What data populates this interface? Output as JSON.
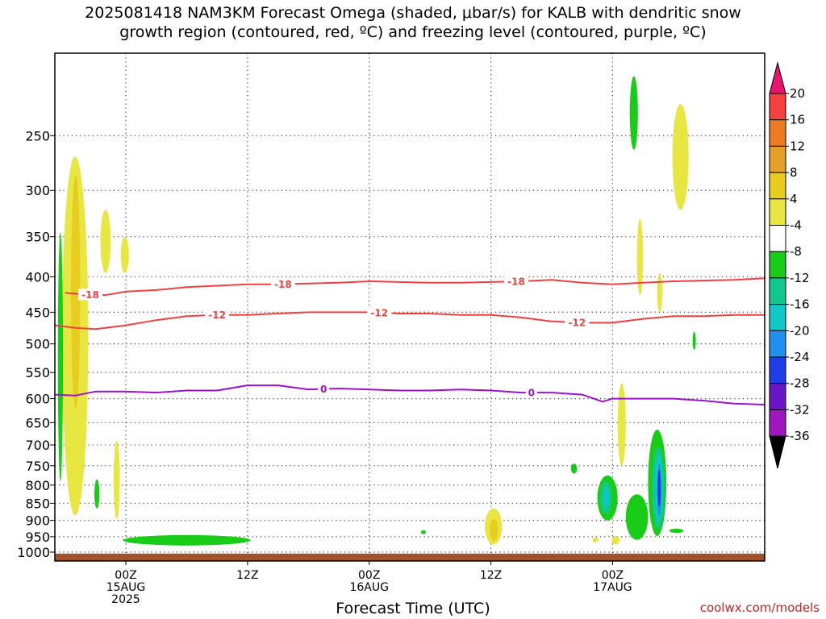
{
  "title_line1": "2025081418 NAM3KM Forecast Omega (shaded, μbar/s) for KALB with dendritic snow",
  "title_line2": "growth region (contoured, red, ºC) and freezing level (contoured, purple, ºC)",
  "credit": "coolwx.com/models",
  "chart_data": {
    "type": "time-height cross section",
    "xlabel": "Forecast Time (UTC)",
    "ylabel": "",
    "x_range_hours": [
      -7,
      63
    ],
    "y_range_mb": [
      1030,
      190
    ],
    "y_scale": "log-pressure (inverted)",
    "pressure_ticks": [
      250,
      300,
      350,
      400,
      450,
      500,
      550,
      600,
      650,
      700,
      750,
      800,
      850,
      900,
      950,
      1000
    ],
    "time_ticks": [
      {
        "hour": 0,
        "lines": [
          "00Z",
          "15AUG",
          "2025"
        ]
      },
      {
        "hour": 12,
        "lines": [
          "12Z"
        ]
      },
      {
        "hour": 24,
        "lines": [
          "00Z",
          "16AUG"
        ]
      },
      {
        "hour": 36,
        "lines": [
          "12Z"
        ]
      },
      {
        "hour": 48,
        "lines": [
          "00Z",
          "17AUG"
        ]
      }
    ],
    "grid": "dotted",
    "colorbar": {
      "unit": "μbar/s",
      "labels": [
        20,
        16,
        12,
        8,
        4,
        -4,
        -8,
        -12,
        -16,
        -20,
        -24,
        -28,
        -32,
        -36
      ],
      "colors": [
        "#e8136e",
        "#f44040",
        "#ee7a22",
        "#e6a028",
        "#e8cc20",
        "#e8e640",
        "#ffffff",
        "#18cc18",
        "#10c890",
        "#10c8c8",
        "#2090f0",
        "#1e3ce8",
        "#6a16c8",
        "#a016c0",
        "#a8a8a8",
        "#000000"
      ]
    },
    "contours": [
      {
        "label": "-18",
        "color": "#f04040",
        "points": [
          [
            -6,
            422
          ],
          [
            -4,
            424
          ],
          [
            -2,
            425
          ],
          [
            0,
            420
          ],
          [
            3,
            418
          ],
          [
            6,
            414
          ],
          [
            9,
            412
          ],
          [
            12,
            410
          ],
          [
            15,
            410
          ],
          [
            18,
            409
          ],
          [
            21,
            408
          ],
          [
            24,
            406
          ],
          [
            27,
            407
          ],
          [
            30,
            408
          ],
          [
            33,
            408
          ],
          [
            36,
            407
          ],
          [
            39,
            406
          ],
          [
            42,
            404
          ],
          [
            45,
            408
          ],
          [
            48,
            410
          ],
          [
            51,
            408
          ],
          [
            54,
            406
          ],
          [
            57,
            405
          ],
          [
            60,
            404
          ],
          [
            63,
            402
          ]
        ],
        "label_hours": [
          -3.5,
          15.5,
          38.5
        ]
      },
      {
        "label": "-12",
        "color": "#f04040",
        "points": [
          [
            -7,
            470
          ],
          [
            -5,
            474
          ],
          [
            -3,
            476
          ],
          [
            0,
            470
          ],
          [
            3,
            462
          ],
          [
            6,
            456
          ],
          [
            9,
            454
          ],
          [
            12,
            454
          ],
          [
            15,
            452
          ],
          [
            18,
            450
          ],
          [
            21,
            450
          ],
          [
            24,
            450
          ],
          [
            27,
            452
          ],
          [
            30,
            452
          ],
          [
            33,
            454
          ],
          [
            36,
            454
          ],
          [
            39,
            458
          ],
          [
            42,
            464
          ],
          [
            45,
            466
          ],
          [
            48,
            466
          ],
          [
            51,
            460
          ],
          [
            54,
            456
          ],
          [
            57,
            456
          ],
          [
            60,
            454
          ],
          [
            63,
            454
          ]
        ],
        "label_hours": [
          9,
          25,
          44.5
        ]
      },
      {
        "label": "0",
        "color": "#a010d0",
        "points": [
          [
            -7,
            592
          ],
          [
            -5,
            594
          ],
          [
            -3,
            586
          ],
          [
            0,
            586
          ],
          [
            3,
            588
          ],
          [
            6,
            584
          ],
          [
            9,
            584
          ],
          [
            12,
            574
          ],
          [
            15,
            574
          ],
          [
            18,
            582
          ],
          [
            21,
            580
          ],
          [
            24,
            582
          ],
          [
            27,
            584
          ],
          [
            30,
            584
          ],
          [
            33,
            582
          ],
          [
            36,
            584
          ],
          [
            39,
            588
          ],
          [
            42,
            588
          ],
          [
            45,
            592
          ],
          [
            47,
            606
          ],
          [
            48,
            600
          ],
          [
            51,
            600
          ],
          [
            54,
            600
          ],
          [
            57,
            604
          ],
          [
            60,
            610
          ],
          [
            63,
            612
          ]
        ],
        "label_hours": [
          19.5,
          40
        ]
      }
    ],
    "omega_regions": [
      {
        "value": 4,
        "hours": [
          -6.3,
          -3.7
        ],
        "mb": [
          885,
          268
        ]
      },
      {
        "value": 8,
        "hours": [
          -5.4,
          -4.5
        ],
        "mb": [
          620,
          285
        ]
      },
      {
        "value": 4,
        "hours": [
          -2.5,
          -1.5
        ],
        "mb": [
          395,
          320
        ]
      },
      {
        "value": 4,
        "hours": [
          -0.5,
          0.3
        ],
        "mb": [
          395,
          350
        ]
      },
      {
        "value": 4,
        "hours": [
          -1.2,
          -0.6
        ],
        "mb": [
          895,
          690
        ]
      },
      {
        "value": -4,
        "hours": [
          -6.7,
          -6.2
        ],
        "mb": [
          790,
          345
        ]
      },
      {
        "value": -4,
        "hours": [
          -3.1,
          -2.6
        ],
        "mb": [
          865,
          785
        ]
      },
      {
        "value": -4,
        "hours": [
          -0.3,
          12.3
        ],
        "mb": [
          978,
          945
        ]
      },
      {
        "value": 4,
        "hours": [
          35.4,
          37.1
        ],
        "mb": [
          975,
          865
        ]
      },
      {
        "value": 8,
        "hours": [
          35.9,
          36.7
        ],
        "mb": [
          965,
          895
        ]
      },
      {
        "value": -4,
        "hours": [
          46.5,
          48.5
        ],
        "mb": [
          900,
          775
        ]
      },
      {
        "value": -8,
        "hours": [
          46.8,
          47.9
        ],
        "mb": [
          880,
          790
        ]
      },
      {
        "value": -12,
        "hours": [
          47.1,
          47.6
        ],
        "mb": [
          860,
          810
        ]
      },
      {
        "value": 4,
        "hours": [
          48.5,
          49.3
        ],
        "mb": [
          750,
          570
        ]
      },
      {
        "value": -4,
        "hours": [
          49.3,
          51.5
        ],
        "mb": [
          960,
          825
        ]
      },
      {
        "value": -4,
        "hours": [
          51.5,
          53.3
        ],
        "mb": [
          948,
          665
        ]
      },
      {
        "value": -8,
        "hours": [
          51.9,
          53.1
        ],
        "mb": [
          925,
          705
        ]
      },
      {
        "value": -12,
        "hours": [
          52.2,
          52.9
        ],
        "mb": [
          905,
          725
        ]
      },
      {
        "value": -16,
        "hours": [
          52.4,
          52.8
        ],
        "mb": [
          890,
          745
        ]
      },
      {
        "value": -20,
        "hours": [
          52.5,
          52.7
        ],
        "mb": [
          860,
          760
        ]
      },
      {
        "value": 4,
        "hours": [
          47.9,
          48.7
        ],
        "mb": [
          975,
          948
        ]
      },
      {
        "value": 4,
        "hours": [
          46.0,
          46.6
        ],
        "mb": [
          968,
          952
        ]
      },
      {
        "value": 4,
        "hours": [
          50.4,
          51.0
        ],
        "mb": [
          425,
          330
        ]
      },
      {
        "value": 4,
        "hours": [
          52.4,
          52.9
        ],
        "mb": [
          450,
          395
        ]
      },
      {
        "value": 4,
        "hours": [
          53.9,
          55.5
        ],
        "mb": [
          320,
          225
        ]
      },
      {
        "value": -4,
        "hours": [
          49.7,
          50.5
        ],
        "mb": [
          262,
          205
        ]
      },
      {
        "value": -4,
        "hours": [
          43.9,
          44.5
        ],
        "mb": [
          770,
          745
        ]
      },
      {
        "value": -4,
        "hours": [
          53.6,
          55.0
        ],
        "mb": [
          938,
          925
        ]
      },
      {
        "value": -4,
        "hours": [
          55.9,
          56.2
        ],
        "mb": [
          510,
          480
        ]
      },
      {
        "value": -4,
        "hours": [
          29.1,
          29.6
        ],
        "mb": [
          942,
          930
        ]
      }
    ],
    "terrain": {
      "color": "#a0522d",
      "top_mb": 1005
    }
  }
}
